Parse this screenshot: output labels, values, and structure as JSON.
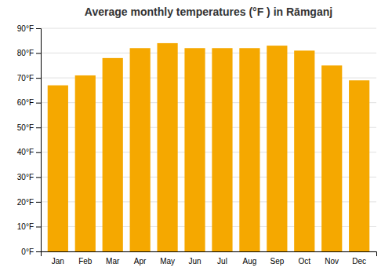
{
  "chart_data": {
    "type": "bar",
    "title": "Average monthly temperatures (°F ) in Rāmganj",
    "categories": [
      "Jan",
      "Feb",
      "Mar",
      "Apr",
      "May",
      "Jun",
      "Jul",
      "Aug",
      "Sep",
      "Oct",
      "Nov",
      "Dec"
    ],
    "values": [
      67,
      71,
      78,
      82,
      84,
      82,
      82,
      82,
      83,
      81,
      75,
      69
    ],
    "color": "#F5A800",
    "ylim": [
      0,
      90
    ],
    "yticks": [
      {
        "value": 0,
        "label": "0°F"
      },
      {
        "value": 10,
        "label": "10°F"
      },
      {
        "value": 20,
        "label": "20°F"
      },
      {
        "value": 30,
        "label": "30°F"
      },
      {
        "value": 40,
        "label": "40°F"
      },
      {
        "value": 50,
        "label": "50°F"
      },
      {
        "value": 60,
        "label": "60°F"
      },
      {
        "value": 70,
        "label": "70°F"
      },
      {
        "value": 80,
        "label": "80°F"
      },
      {
        "value": 90,
        "label": "90°F"
      }
    ],
    "grid": true
  }
}
